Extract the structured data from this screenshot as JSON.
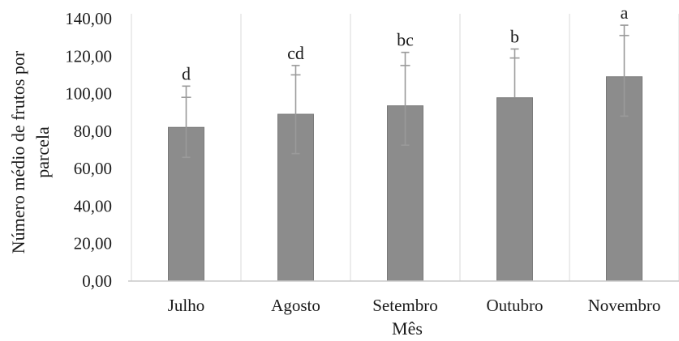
{
  "chart_data": {
    "type": "bar",
    "categories": [
      "Julho",
      "Agosto",
      "Setembro",
      "Outubro",
      "Novembro"
    ],
    "values": [
      82.0,
      89.0,
      93.5,
      97.8,
      109.0
    ],
    "error_plus": [
      22.0,
      26.0,
      28.5,
      26.0,
      27.5
    ],
    "error_minus": [
      16.0,
      21.0,
      21.0,
      0,
      21.0
    ],
    "error_inner_upper": [
      98.0,
      110.0,
      115.0,
      119.0,
      131.0
    ],
    "significance_letters": [
      "d",
      "cd",
      "bc",
      "b",
      "a"
    ],
    "xlabel": "Mês",
    "ylabel_lines": [
      "Número médio de frutos por",
      "parcela"
    ],
    "ylim": [
      0,
      140
    ],
    "yticks": [
      "0,00",
      "20,00",
      "40,00",
      "60,00",
      "80,00",
      "100,00",
      "120,00",
      "140,00"
    ],
    "ytick_values": [
      0,
      20,
      40,
      60,
      80,
      100,
      120,
      140
    ],
    "grid": "vertical separators",
    "colors": {
      "bar": "#8c8c8c",
      "bar_stroke": "#7a7a7a",
      "error": "#9a9a9a",
      "grid": "#e6e6e6",
      "axis": "#c8c8c8"
    }
  }
}
